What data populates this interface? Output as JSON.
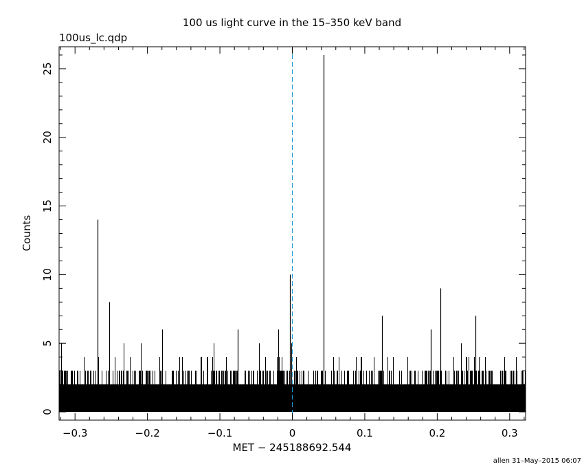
{
  "header": {
    "title": "100 us light curve in the 15–350 keV band",
    "file_label": "100us_lc.qdp"
  },
  "footer": {
    "stamp": "allen 31–May–2015 06:07"
  },
  "chart_data": {
    "type": "bar",
    "xlabel": "MET − 245188692.544",
    "ylabel": "Counts",
    "xlim": [
      -0.322,
      0.322
    ],
    "ylim": [
      -0.6,
      26.6
    ],
    "x_ticks": [
      {
        "value": -0.3,
        "label": "−0.3"
      },
      {
        "value": -0.2,
        "label": "−0.2"
      },
      {
        "value": -0.1,
        "label": "−0.1"
      },
      {
        "value": 0,
        "label": "0"
      },
      {
        "value": 0.1,
        "label": "0.1"
      },
      {
        "value": 0.2,
        "label": "0.2"
      },
      {
        "value": 0.3,
        "label": "0.3"
      }
    ],
    "y_ticks": [
      {
        "value": 0,
        "label": "0"
      },
      {
        "value": 5,
        "label": "5"
      },
      {
        "value": 10,
        "label": "10"
      },
      {
        "value": 15,
        "label": "15"
      },
      {
        "value": 20,
        "label": "20"
      },
      {
        "value": 25,
        "label": "25"
      }
    ],
    "trigger_line": {
      "x": 0,
      "color": "#1a9ad6",
      "style": "dashed"
    },
    "bin_width": 0.0001,
    "baseline_counts": 2,
    "spikes": [
      {
        "x": -0.2689,
        "y": 14
      },
      {
        "x": -0.2524,
        "y": 8
      },
      {
        "x": -0.1794,
        "y": 6
      },
      {
        "x": -0.0752,
        "y": 6
      },
      {
        "x": -0.0196,
        "y": 6
      },
      {
        "x": -0.0031,
        "y": 10
      },
      {
        "x": 0.0432,
        "y": 26
      },
      {
        "x": 0.1242,
        "y": 7
      },
      {
        "x": 0.1907,
        "y": 6
      },
      {
        "x": 0.2046,
        "y": 9
      },
      {
        "x": 0.2526,
        "y": 7
      }
    ],
    "grid": false,
    "bar_color": "#000000"
  }
}
